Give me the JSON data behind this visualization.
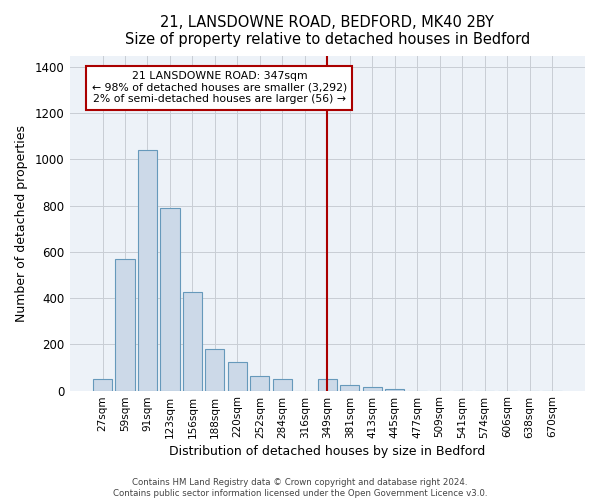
{
  "title": "21, LANSDOWNE ROAD, BEDFORD, MK40 2BY",
  "subtitle": "Size of property relative to detached houses in Bedford",
  "xlabel": "Distribution of detached houses by size in Bedford",
  "ylabel": "Number of detached properties",
  "categories": [
    "27sqm",
    "59sqm",
    "91sqm",
    "123sqm",
    "156sqm",
    "188sqm",
    "220sqm",
    "252sqm",
    "284sqm",
    "316sqm",
    "349sqm",
    "381sqm",
    "413sqm",
    "445sqm",
    "477sqm",
    "509sqm",
    "541sqm",
    "574sqm",
    "606sqm",
    "638sqm",
    "670sqm"
  ],
  "values": [
    50,
    570,
    1040,
    790,
    425,
    180,
    125,
    65,
    50,
    0,
    50,
    25,
    15,
    5,
    0,
    0,
    0,
    0,
    0,
    0,
    0
  ],
  "bar_color": "#ccd9e8",
  "bar_edge_color": "#6699bb",
  "property_line_index": 10,
  "property_line_color": "#aa0000",
  "annotation_line1": "21 LANSDOWNE ROAD: 347sqm",
  "annotation_line2": "← 98% of detached houses are smaller (3,292)",
  "annotation_line3": "2% of semi-detached houses are larger (56) →",
  "annotation_box_color": "#ffffff",
  "annotation_box_edge": "#aa0000",
  "ylim": [
    0,
    1450
  ],
  "yticks": [
    0,
    200,
    400,
    600,
    800,
    1000,
    1200,
    1400
  ],
  "footer1": "Contains HM Land Registry data © Crown copyright and database right 2024.",
  "footer2": "Contains public sector information licensed under the Open Government Licence v3.0.",
  "background_color": "#ffffff",
  "plot_bg_color": "#edf2f8",
  "grid_color": "#c8cdd4"
}
